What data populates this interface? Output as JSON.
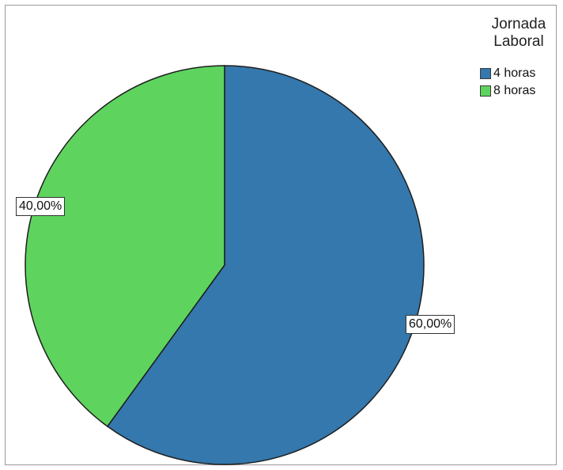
{
  "chart_data": {
    "type": "pie",
    "legend_title": [
      "Jornada",
      "Laboral"
    ],
    "legend_placement": "top-right",
    "slices": [
      {
        "name": "4 horas",
        "value": 60.0,
        "label": "60,00%",
        "color": "#3478ad"
      },
      {
        "name": "8 horas",
        "value": 40.0,
        "label": "40,00%",
        "color": "#5ed45f"
      }
    ]
  }
}
